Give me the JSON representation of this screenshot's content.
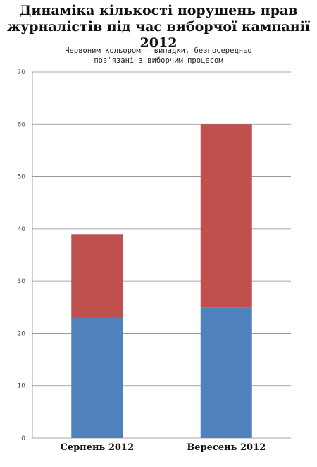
{
  "chart_data": {
    "type": "bar",
    "stacked": true,
    "title_lines": [
      "Динаміка кількості порушень прав",
      "журналістів під час виборчої кампанії 2012"
    ],
    "subtitle_lines": [
      "Червоним кольором — випадки, безпосередньо",
      "пов'язані з виборчим процесом"
    ],
    "categories": [
      "Серпень 2012",
      "Вересень 2012"
    ],
    "series": [
      {
        "color": "#4f81bd",
        "values": [
          23,
          25
        ]
      },
      {
        "color": "#c0504d",
        "values": [
          16,
          35
        ]
      }
    ],
    "ylim": [
      0,
      70
    ],
    "yticks": [
      0,
      10,
      20,
      30,
      40,
      50,
      60,
      70
    ],
    "grid": true,
    "legend": "none"
  }
}
